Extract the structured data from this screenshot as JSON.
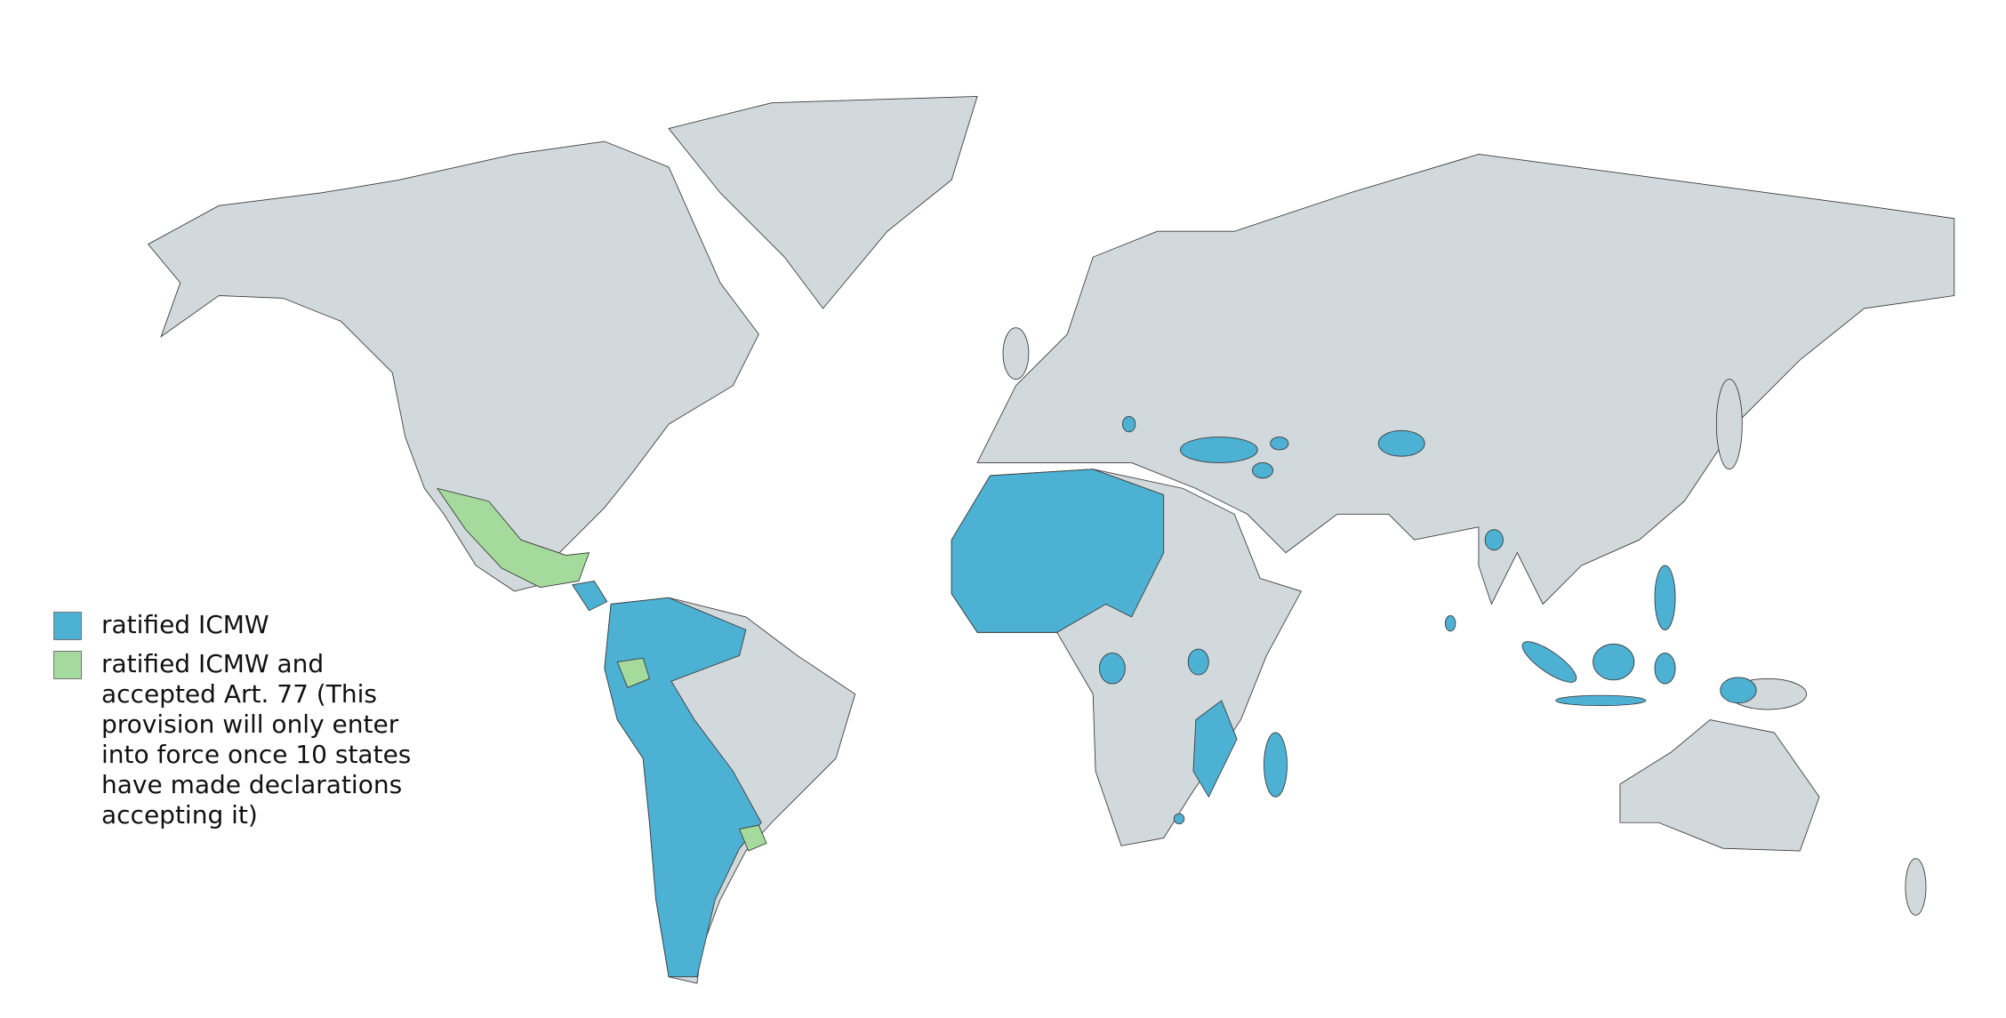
{
  "colors": {
    "land": "#d2d9dc",
    "ratified": "#4cb1d3",
    "ratified_art77": "#a4da9c",
    "background": "#ffffff"
  },
  "legend": {
    "items": [
      {
        "label": "ratified ICMW",
        "color": "#4cb1d3"
      },
      {
        "label": "ratified ICMW and accepted Art. 77 (This provision will only enter into force once 10 states have made declarations accepting it)",
        "color": "#a4da9c"
      }
    ]
  }
}
